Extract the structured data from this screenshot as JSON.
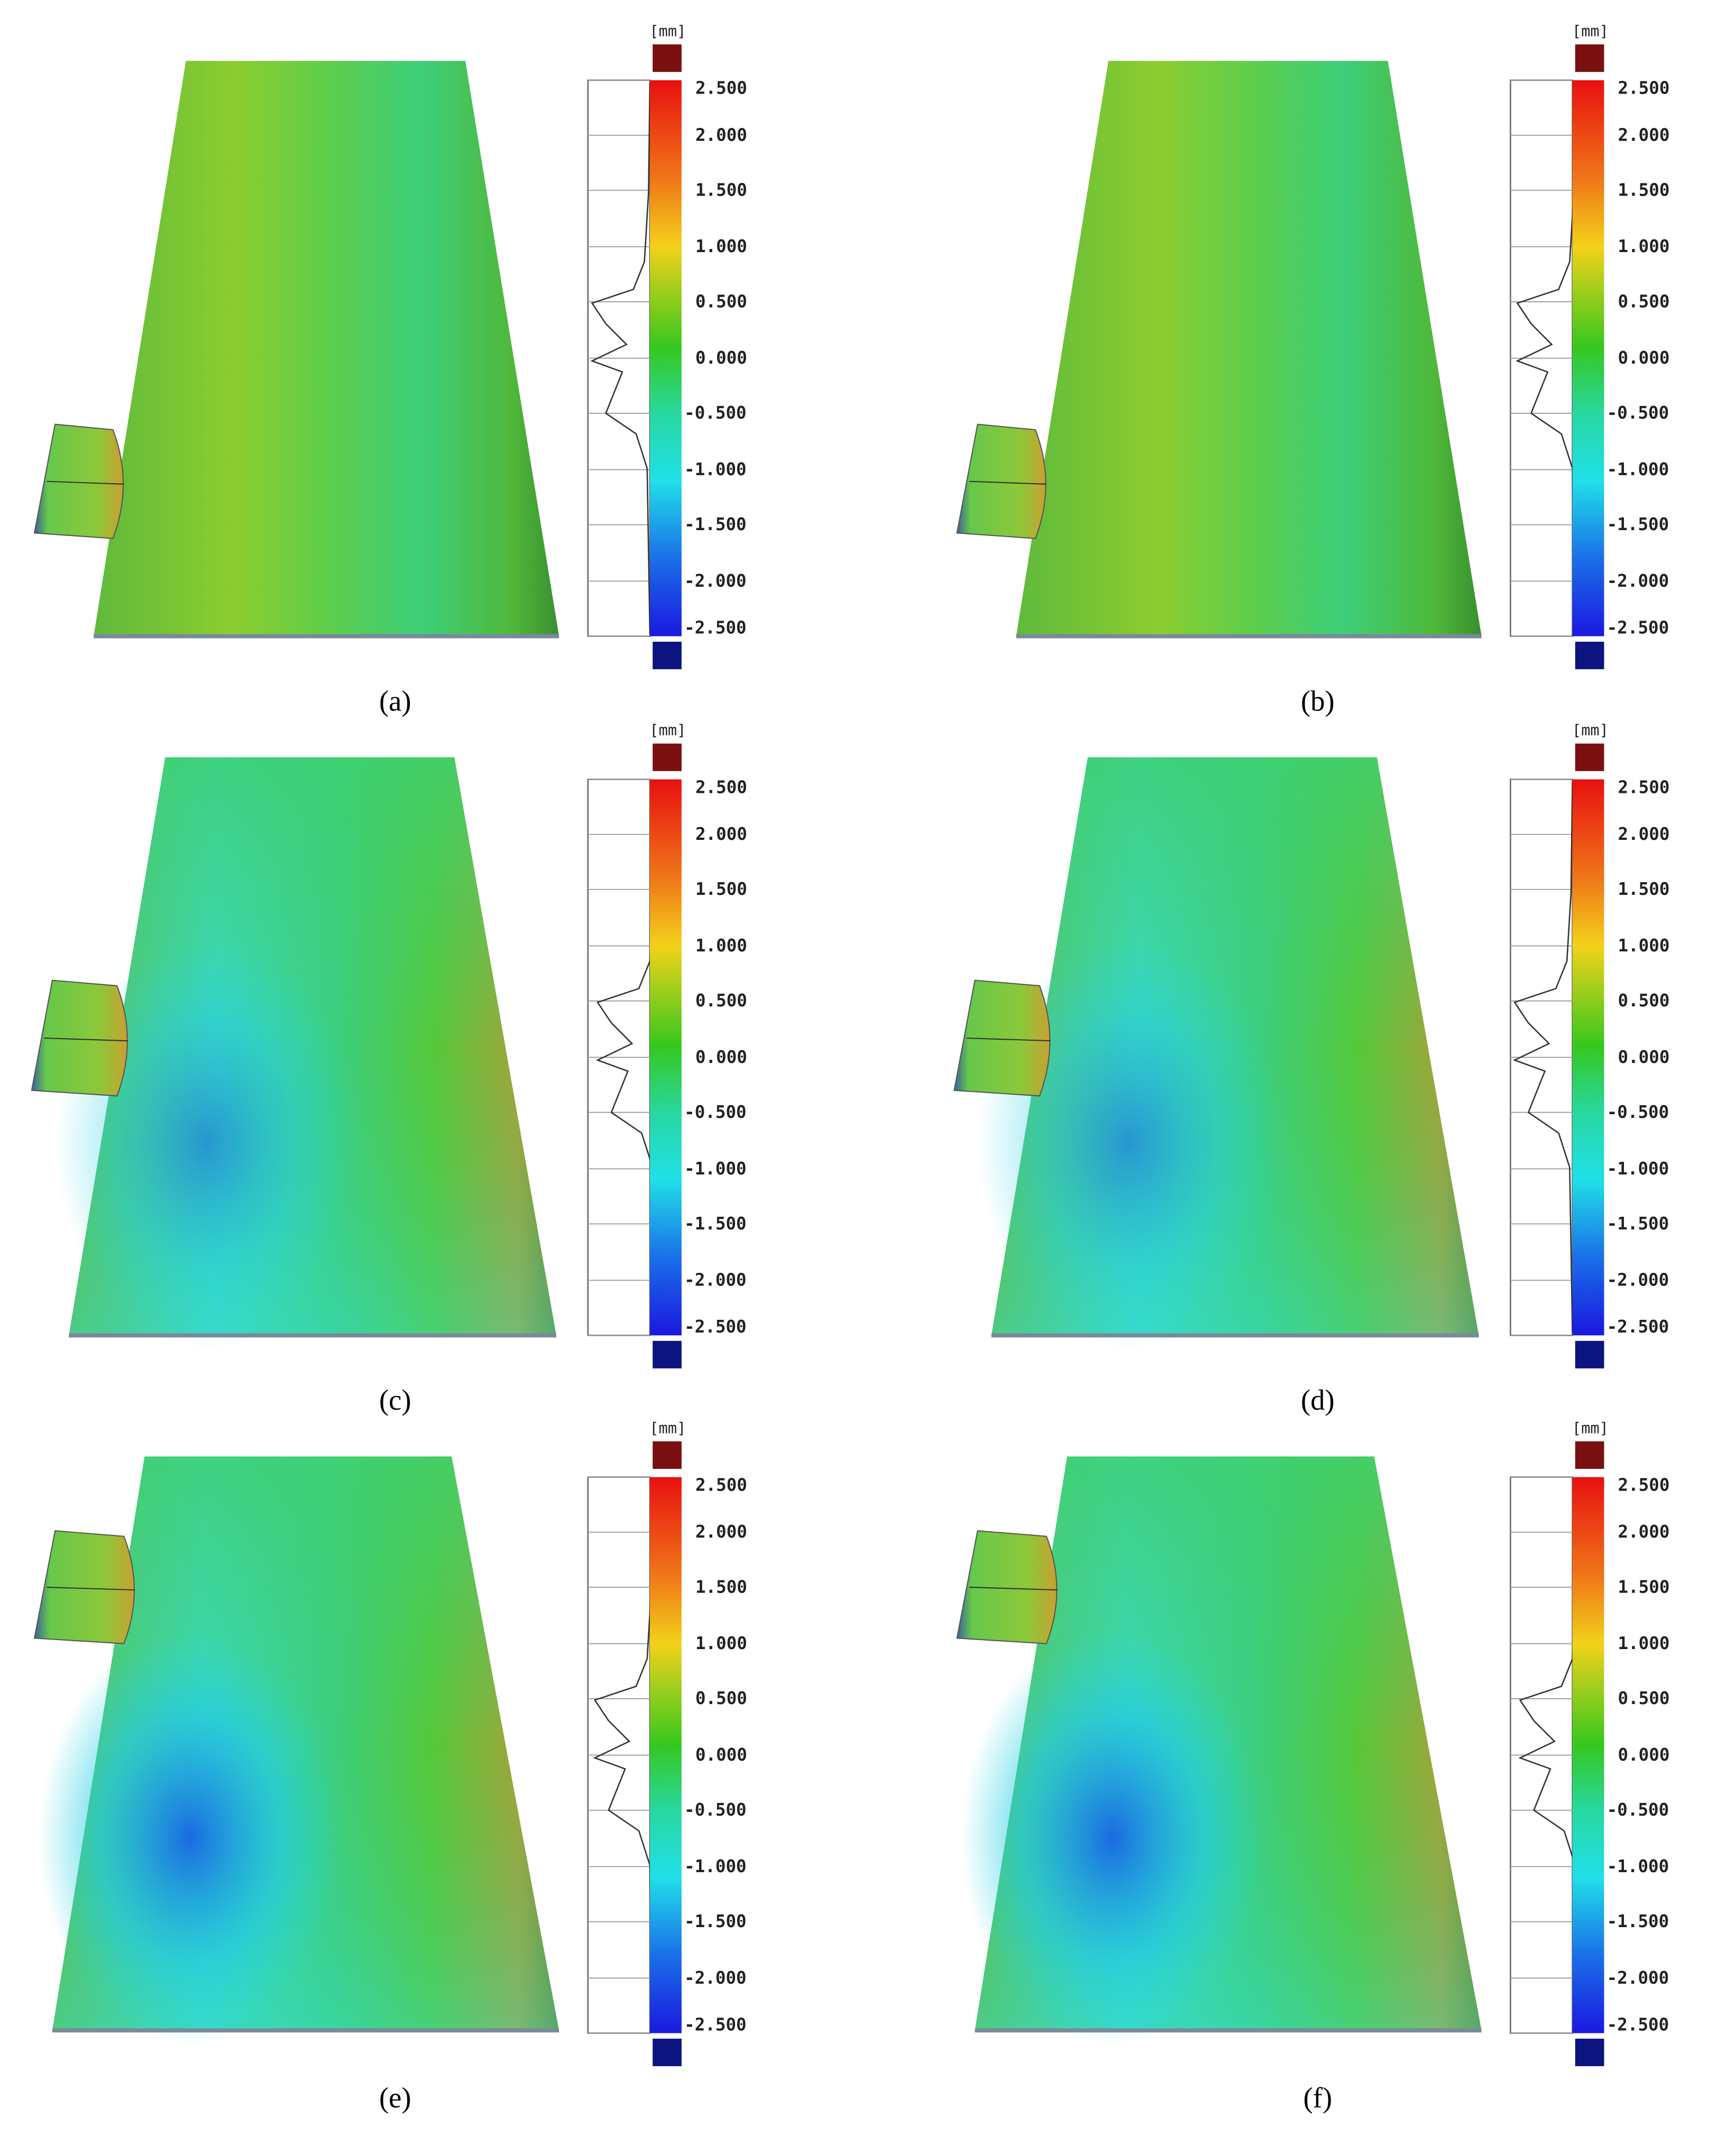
{
  "figure": {
    "panels": [
      {
        "label": "(a)",
        "unit": "[mm]",
        "ticks": [
          "2.500",
          "2.000",
          "1.500",
          "1.000",
          "0.500",
          "0.000",
          "-0.500",
          "-1.000",
          "-1.500",
          "-2.000",
          "-2.500"
        ]
      },
      {
        "label": "(b)",
        "unit": "[mm]",
        "ticks": [
          "2.500",
          "2.000",
          "1.500",
          "1.000",
          "0.500",
          "0.000",
          "-0.500",
          "-1.000",
          "-1.500",
          "-2.000",
          "-2.500"
        ]
      },
      {
        "label": "(c)",
        "unit": "[mm]",
        "ticks": [
          "2.500",
          "2.000",
          "1.500",
          "1.000",
          "0.500",
          "0.000",
          "-0.500",
          "-1.000",
          "-1.500",
          "-2.000",
          "-2.500"
        ]
      },
      {
        "label": "(d)",
        "unit": "[mm]",
        "ticks": [
          "2.500",
          "2.000",
          "1.500",
          "1.000",
          "0.500",
          "0.000",
          "-0.500",
          "-1.000",
          "-1.500",
          "-2.000",
          "-2.500"
        ]
      },
      {
        "label": "(e)",
        "unit": "[mm]",
        "ticks": [
          "2.500",
          "2.000",
          "1.500",
          "1.000",
          "0.500",
          "0.000",
          "-0.500",
          "-1.000",
          "-1.500",
          "-2.000",
          "-2.500"
        ]
      },
      {
        "label": "(f)",
        "unit": "[mm]",
        "ticks": [
          "2.500",
          "2.000",
          "1.500",
          "1.000",
          "0.500",
          "0.000",
          "-0.500",
          "-1.000",
          "-1.500",
          "-2.000",
          "-2.500"
        ]
      }
    ]
  }
}
